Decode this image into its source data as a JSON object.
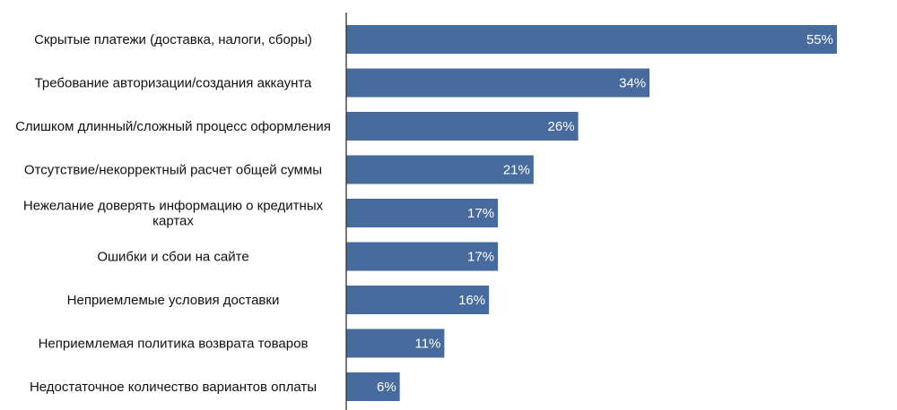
{
  "chart_data": {
    "type": "bar",
    "orientation": "horizontal",
    "title": "",
    "xlabel": "",
    "ylabel": "",
    "xlim": [
      0,
      55
    ],
    "grid": false,
    "bar_color": "#466b9c",
    "axis_color": "#333333",
    "categories": [
      [
        "Скрытые платежи (доставка, налоги, сборы)"
      ],
      [
        "Требование авторизации/создания аккаунта"
      ],
      [
        "Слишком длинный/сложный процесс оформления"
      ],
      [
        "Отсутствие/некорректный расчет общей суммы"
      ],
      [
        "Нежелание доверять информацию о кредитных",
        "картах"
      ],
      [
        "Ошибки и сбои на сайте"
      ],
      [
        "Неприемлемые условия доставки"
      ],
      [
        "Неприемлемая политика возврата товаров"
      ],
      [
        "Недостаточное количество вариантов оплаты"
      ]
    ],
    "values": [
      55,
      34,
      26,
      21,
      17,
      17,
      16,
      11,
      6
    ],
    "value_labels": [
      "55%",
      "34%",
      "26%",
      "21%",
      "17%",
      "17%",
      "16%",
      "11%",
      "6%"
    ]
  }
}
